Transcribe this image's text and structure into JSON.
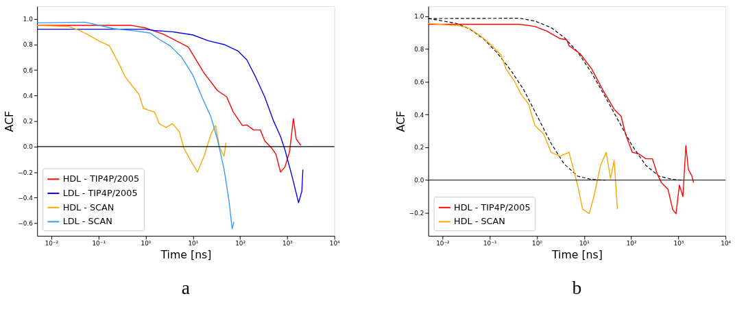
{
  "chart_data": [
    {
      "type": "line",
      "title": "a",
      "xlabel": "Time [ns]",
      "ylabel": "ACF",
      "log": "x",
      "grid": false,
      "legend": "bottom left",
      "line_style": "solid",
      "marker": "none",
      "xlim": [
        0.005,
        10000
      ],
      "xticks": [
        {
          "value": 0.01,
          "label": "10⁻²"
        },
        {
          "value": 0.1,
          "label": "10⁻¹"
        },
        {
          "value": 1,
          "label": "10⁰"
        },
        {
          "value": 10,
          "label": "10¹"
        },
        {
          "value": 100,
          "label": "10²"
        },
        {
          "value": 1000,
          "label": "10³"
        },
        {
          "value": 10000,
          "label": "10⁴"
        }
      ],
      "ylim": [
        -0.7,
        1.1
      ],
      "yticks": [
        {
          "value": -0.6,
          "label": "−0.6"
        },
        {
          "value": -0.4,
          "label": "−0.4"
        },
        {
          "value": -0.2,
          "label": "−0.2"
        },
        {
          "value": 0,
          "label": "0.0"
        },
        0.2,
        0.4,
        0.6,
        0.8,
        {
          "value": 1,
          "label": "1.0"
        }
      ],
      "ref_lines": [
        {
          "axis": "y",
          "value": 0,
          "color": "#000000"
        }
      ],
      "series": [
        {
          "name": "HDL - TIP4P/2005",
          "color": "#ff0000",
          "x": [
            0.005,
            0.5,
            1,
            2.4,
            8,
            17,
            33,
            52,
            72,
            112,
            139,
            194,
            270,
            333,
            464,
            577,
            720,
            895,
            1120,
            1350,
            1550,
            1940
          ],
          "values": [
            0.95,
            0.95,
            0.93,
            0.88,
            0.78,
            0.58,
            0.44,
            0.39,
            0.27,
            0.165,
            0.17,
            0.13,
            0.13,
            0.045,
            -0.01,
            -0.06,
            -0.2,
            -0.16,
            -0.04,
            0.22,
            0.06,
            0.01
          ]
        },
        {
          "name": "LDL - TIP4P/2005",
          "color": "#0000ff",
          "x": [
            0.005,
            1,
            1.5,
            3.7,
            10,
            21,
            46,
            90,
            139,
            214,
            333,
            514,
            720,
            895,
            1260,
            1740,
            2040,
            2150
          ],
          "values": [
            0.92,
            0.92,
            0.91,
            0.9,
            0.875,
            0.83,
            0.8,
            0.75,
            0.68,
            0.545,
            0.39,
            0.2,
            0.08,
            -0.025,
            -0.23,
            -0.44,
            -0.35,
            -0.18
          ]
        },
        {
          "name": "HDL - SCAN",
          "color": "#ffa500",
          "x": [
            0.005,
            0.024,
            0.037,
            0.058,
            0.1,
            0.17,
            0.27,
            0.37,
            0.52,
            0.72,
            0.89,
            1.55,
            1.93,
            2.7,
            3.7,
            5.2,
            6.4,
            9,
            12.5,
            17.3,
            24,
            30,
            37,
            46,
            50
          ],
          "values": [
            0.95,
            0.94,
            0.915,
            0.88,
            0.83,
            0.79,
            0.65,
            0.545,
            0.475,
            0.41,
            0.3,
            0.27,
            0.18,
            0.15,
            0.18,
            0.115,
            -0.01,
            -0.11,
            -0.2,
            -0.075,
            0.095,
            0.165,
            -0.01,
            -0.075,
            0.03
          ]
        },
        {
          "name": "LDL - SCAN",
          "color": "#3399ff",
          "x": [
            0.005,
            0.052,
            0.21,
            0.65,
            1.25,
            1.93,
            3.3,
            5.8,
            10,
            15.5,
            24,
            33,
            46,
            58,
            68,
            74
          ],
          "values": [
            0.97,
            0.975,
            0.925,
            0.905,
            0.89,
            0.84,
            0.79,
            0.7,
            0.56,
            0.39,
            0.235,
            0.06,
            -0.18,
            -0.42,
            -0.645,
            -0.59
          ]
        }
      ]
    },
    {
      "type": "line",
      "title": "b",
      "xlabel": "Time [ns]",
      "ylabel": "ACF",
      "log": "x",
      "grid": false,
      "legend": "bottom left",
      "line_style": "solid",
      "marker": "none",
      "xlim": [
        0.005,
        10000
      ],
      "xticks": [
        {
          "value": 0.01,
          "label": "10⁻²"
        },
        {
          "value": 0.1,
          "label": "10⁻¹"
        },
        {
          "value": 1,
          "label": "10⁰"
        },
        {
          "value": 10,
          "label": "10¹"
        },
        {
          "value": 100,
          "label": "10²"
        },
        {
          "value": 1000,
          "label": "10³"
        },
        {
          "value": 10000,
          "label": "10⁴"
        }
      ],
      "ylim": [
        -0.34,
        1.06
      ],
      "yticks": [
        {
          "value": -0.2,
          "label": "−0.2"
        },
        {
          "value": 0,
          "label": "0.0"
        },
        0.2,
        0.4,
        0.6,
        0.8,
        {
          "value": 1,
          "label": "1.0"
        }
      ],
      "ref_lines": [
        {
          "axis": "y",
          "value": 0,
          "color": "#000000"
        }
      ],
      "series": [
        {
          "name": "HDL - TIP4P/2005",
          "color": "#ff0000",
          "x": [
            0.005,
            0.43,
            0.91,
            1.6,
            3.1,
            4.3,
            4.8,
            8.3,
            14.4,
            25,
            44,
            61,
            76,
            105,
            145,
            204,
            282,
            354,
            437,
            603,
            759,
            891,
            1050,
            1250,
            1440,
            1630,
            1940,
            2100
          ],
          "values": [
            0.95,
            0.95,
            0.937,
            0.91,
            0.863,
            0.856,
            0.82,
            0.77,
            0.68,
            0.55,
            0.43,
            0.39,
            0.28,
            0.17,
            0.16,
            0.13,
            0.13,
            0.04,
            -0.016,
            -0.056,
            -0.18,
            -0.205,
            -0.03,
            -0.1,
            0.21,
            0.065,
            0.024,
            -0.016
          ]
        },
        {
          "name": "HDL - SCAN",
          "color": "#ffa500",
          "x": [
            0.005,
            0.024,
            0.037,
            0.065,
            0.11,
            0.175,
            0.22,
            0.34,
            0.47,
            0.66,
            0.91,
            1.4,
            2.0,
            3.1,
            4.8,
            6.0,
            7.5,
            9.3,
            12.9,
            16.3,
            22.4,
            29.5,
            36.5,
            43.5,
            51
          ],
          "values": [
            0.955,
            0.94,
            0.926,
            0.877,
            0.823,
            0.762,
            0.68,
            0.6,
            0.52,
            0.467,
            0.333,
            0.28,
            0.17,
            0.145,
            0.17,
            0.064,
            -0.043,
            -0.177,
            -0.204,
            -0.097,
            0.09,
            0.17,
            0.01,
            0.12,
            -0.177
          ]
        },
        {
          "color": "#000000",
          "line_style": "dashed",
          "x": [
            0.005,
            0.019,
            0.037,
            0.073,
            0.14,
            0.28,
            0.53,
            1.02,
            2.0,
            3.8,
            7.4,
            14.4,
            28
          ],
          "values": [
            0.985,
            0.957,
            0.923,
            0.863,
            0.78,
            0.67,
            0.55,
            0.39,
            0.225,
            0.098,
            0.024,
            0.004,
            0
          ]
        },
        {
          "color": "#000000",
          "line_style": "dashed",
          "x": [
            0.005,
            0.43,
            0.91,
            2.0,
            3.8,
            7.4,
            14.4,
            28,
            54,
            105,
            204,
            390,
            759,
            1170
          ],
          "values": [
            0.985,
            0.987,
            0.97,
            0.93,
            0.87,
            0.78,
            0.655,
            0.51,
            0.36,
            0.21,
            0.09,
            0.024,
            0.004,
            0
          ]
        }
      ]
    }
  ]
}
